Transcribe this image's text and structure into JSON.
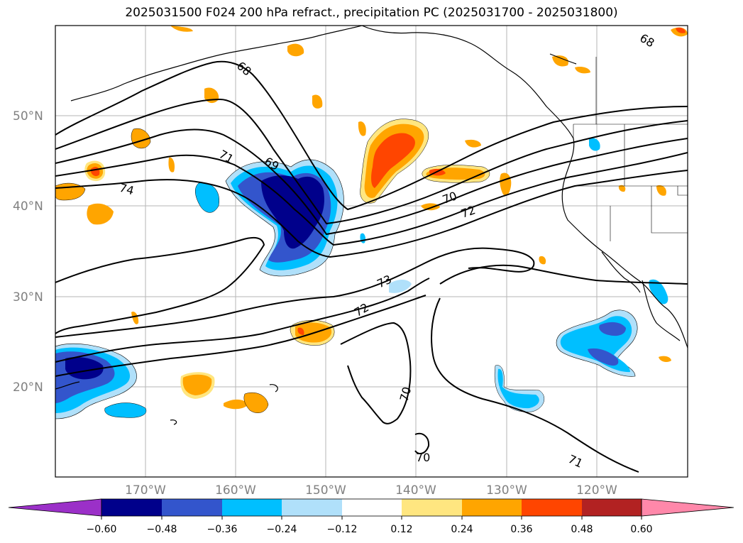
{
  "title": "2025031500 F024 200 hPa refract., precipitation PC (2025031700 - 2025031800)",
  "map": {
    "lat_labels": [
      "50°N",
      "40°N",
      "30°N",
      "20°N"
    ],
    "lon_labels": [
      "170°W",
      "160°W",
      "150°W",
      "140°W",
      "130°W",
      "120°W"
    ],
    "contour_labels": [
      "68",
      "68",
      "71",
      "69",
      "74",
      "70",
      "72",
      "73",
      "72",
      "70",
      "70",
      "71"
    ]
  },
  "colorbar": {
    "ticks": [
      "−0.60",
      "−0.48",
      "−0.36",
      "−0.24",
      "−0.12",
      "0.12",
      "0.24",
      "0.36",
      "0.48",
      "0.60"
    ],
    "colors": [
      "#9b30c8",
      "#00008b",
      "#3355cc",
      "#00bfff",
      "#b0e0fa",
      "#ffffff",
      "#ffe680",
      "#ffa500",
      "#ff4500",
      "#b22222",
      "#ff88aa"
    ]
  }
}
